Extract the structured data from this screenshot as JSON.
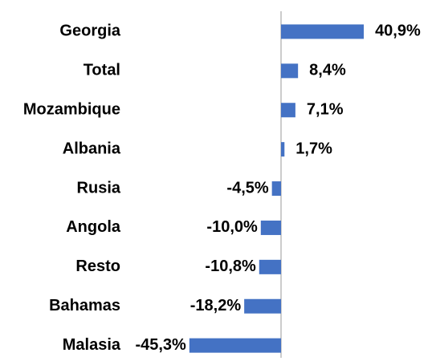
{
  "chart_data": {
    "type": "bar",
    "orientation": "horizontal",
    "categories": [
      "Georgia",
      "Total",
      "Mozambique",
      "Albania",
      "Rusia",
      "Angola",
      "Resto",
      "Bahamas",
      "Malasia"
    ],
    "values": [
      40.9,
      8.4,
      7.1,
      1.7,
      -4.5,
      -10.0,
      -10.8,
      -18.2,
      -45.3
    ],
    "value_labels": [
      "40,9%",
      "8,4%",
      "7,1%",
      "1,7%",
      "-4,5%",
      "-10,0%",
      "-10,8%",
      "-18,2%",
      "-45,3%"
    ],
    "color": "#4472c4",
    "xlim": [
      -50,
      50
    ]
  }
}
